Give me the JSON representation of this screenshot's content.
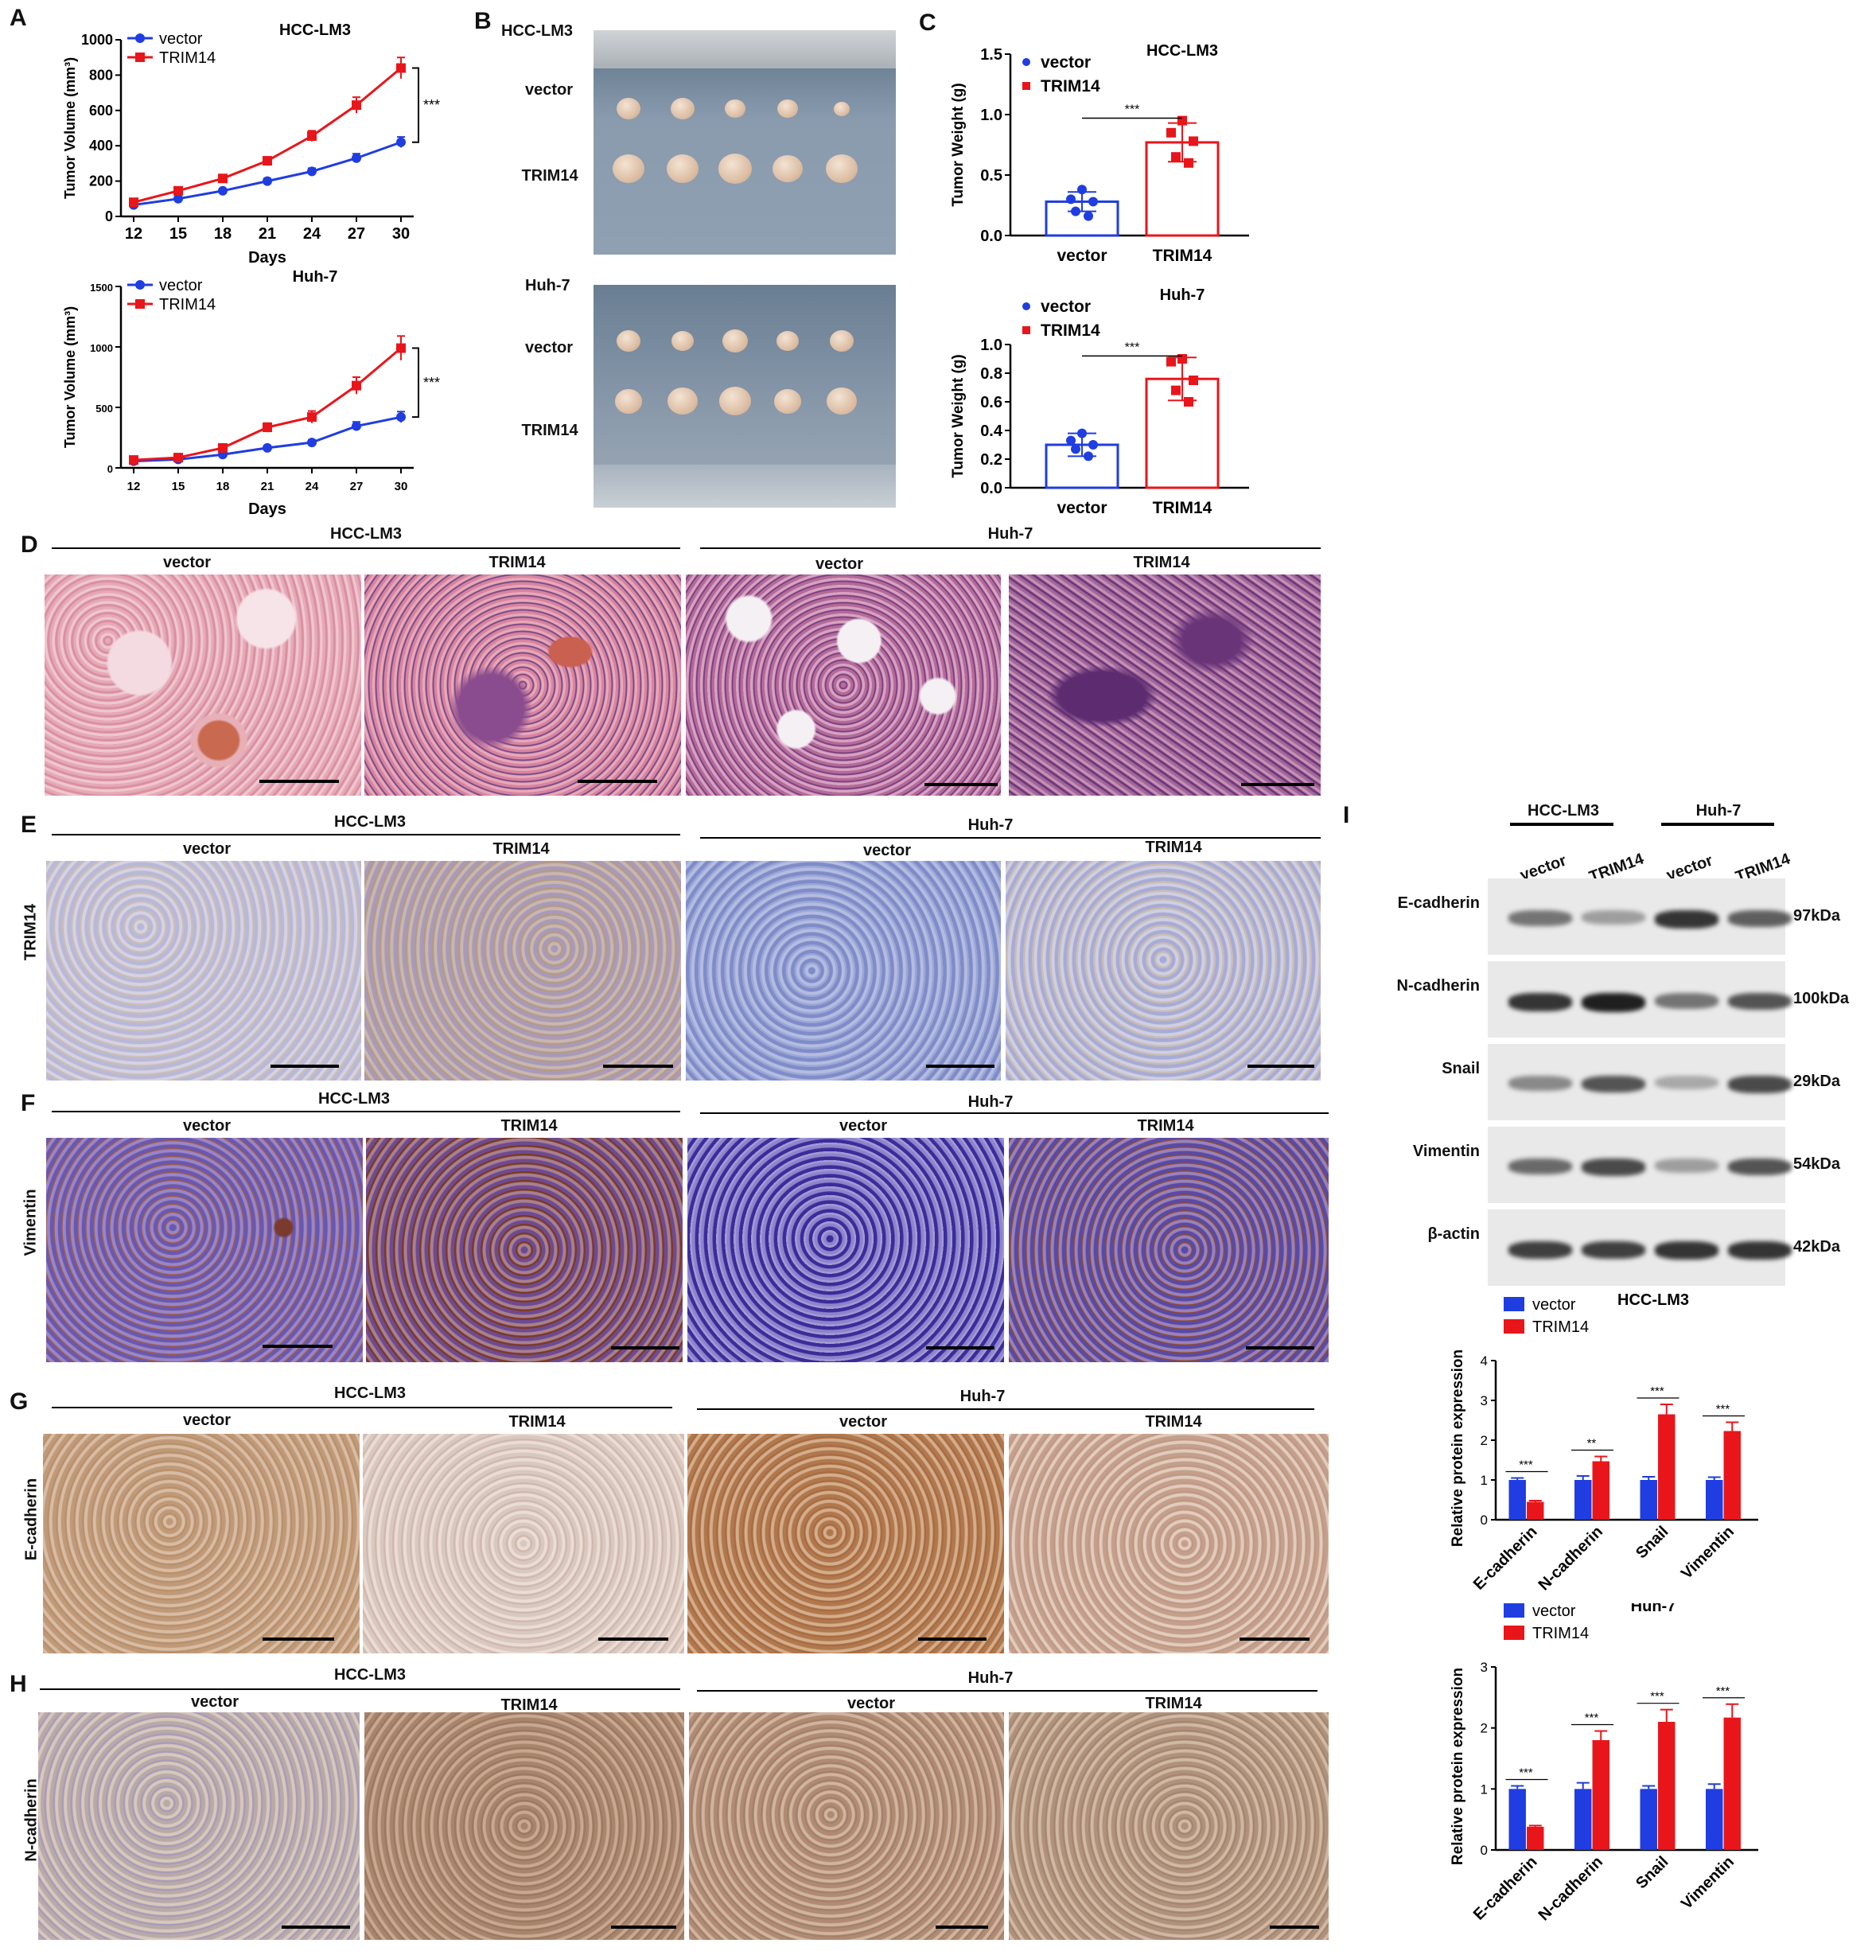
{
  "panels": {
    "A": "A",
    "B": "B",
    "C": "C",
    "D": "D",
    "E": "E",
    "F": "F",
    "G": "G",
    "H": "H",
    "I": "I"
  },
  "colors": {
    "vector": "#1f3de0",
    "trim14": "#e8161b"
  },
  "labels": {
    "vector": "vector",
    "trim14": "TRIM14",
    "hcc": "HCC-LM3",
    "huh": "Huh-7",
    "days": "Days",
    "tumor_volume": "Tumor Volume (mm³)",
    "tumor_weight": "Tumor Weight (g)",
    "rel_expr": "Relative protein expression",
    "sig3": "***",
    "sig2": "**"
  },
  "stain_rows": {
    "E": "TRIM14",
    "F": "Vimentin",
    "G": "E-cadherin",
    "H": "N-cadherin"
  },
  "blot": {
    "lanes": [
      "vector",
      "TRIM14",
      "vector",
      "TRIM14"
    ],
    "groups": [
      "HCC-LM3",
      "Huh-7"
    ],
    "rows": [
      {
        "protein": "E-cadherin",
        "kda": "97kDa"
      },
      {
        "protein": "N-cadherin",
        "kda": "100kDa"
      },
      {
        "protein": "Snail",
        "kda": "29kDa"
      },
      {
        "protein": "Vimentin",
        "kda": "54kDa"
      },
      {
        "protein": "β-actin",
        "kda": "42kDa"
      }
    ]
  },
  "chart_data": [
    {
      "id": "A1",
      "type": "line",
      "title": "HCC-LM3",
      "xlabel": "Days",
      "ylabel": "Tumor Volume (mm³)",
      "x": [
        12,
        15,
        18,
        21,
        24,
        27,
        30
      ],
      "ylim": [
        0,
        1000
      ],
      "yticks": [
        0,
        200,
        400,
        600,
        800,
        1000
      ],
      "series": [
        {
          "name": "vector",
          "values": [
            65,
            100,
            145,
            200,
            255,
            330,
            420
          ],
          "err": [
            10,
            10,
            12,
            15,
            18,
            25,
            30
          ]
        },
        {
          "name": "TRIM14",
          "values": [
            80,
            145,
            215,
            315,
            455,
            630,
            840
          ],
          "err": [
            10,
            12,
            15,
            20,
            30,
            45,
            60
          ]
        }
      ],
      "annotation": "***",
      "legend": "top-left"
    },
    {
      "id": "A2",
      "type": "line",
      "title": "Huh-7",
      "xlabel": "Days",
      "ylabel": "Tumor Volume (mm³)",
      "x": [
        12,
        15,
        18,
        21,
        24,
        27,
        30
      ],
      "ylim": [
        0,
        1500
      ],
      "yticks": [
        0,
        500,
        1000,
        1500
      ],
      "series": [
        {
          "name": "vector",
          "values": [
            55,
            70,
            110,
            165,
            210,
            345,
            420
          ],
          "err": [
            10,
            10,
            12,
            15,
            20,
            35,
            45
          ]
        },
        {
          "name": "TRIM14",
          "values": [
            65,
            85,
            165,
            335,
            420,
            680,
            990
          ],
          "err": [
            10,
            12,
            20,
            35,
            50,
            70,
            100
          ]
        }
      ],
      "annotation": "***",
      "legend": "top-left"
    },
    {
      "id": "C1",
      "type": "bar",
      "title": "HCC-LM3",
      "categories": [
        "vector",
        "TRIM14"
      ],
      "ylabel": "Tumor Weight (g)",
      "ylim": [
        0,
        1.5
      ],
      "yticks": [
        0.0,
        0.5,
        1.0,
        1.5
      ],
      "values": [
        0.28,
        0.77
      ],
      "err": [
        0.08,
        0.16
      ],
      "points": [
        [
          0.38,
          0.3,
          0.28,
          0.2,
          0.16
        ],
        [
          0.95,
          0.85,
          0.78,
          0.65,
          0.6
        ]
      ],
      "annotation": "***"
    },
    {
      "id": "C2",
      "type": "bar",
      "title": "Huh-7",
      "categories": [
        "vector",
        "TRIM14"
      ],
      "ylabel": "Tumor Weight (g)",
      "ylim": [
        0,
        1.0
      ],
      "yticks": [
        0.0,
        0.2,
        0.4,
        0.6,
        0.8,
        1.0
      ],
      "values": [
        0.3,
        0.76
      ],
      "err": [
        0.08,
        0.15
      ],
      "points": [
        [
          0.38,
          0.33,
          0.3,
          0.27,
          0.22
        ],
        [
          0.9,
          0.88,
          0.75,
          0.68,
          0.6
        ]
      ],
      "annotation": "***"
    },
    {
      "id": "I1",
      "type": "bar",
      "title": "HCC-LM3",
      "categories": [
        "E-cadherin",
        "N-cadherin",
        "Snail",
        "Vimentin"
      ],
      "ylabel": "Relative protein expression",
      "ylim": [
        0,
        4
      ],
      "yticks": [
        0,
        1,
        2,
        3,
        4
      ],
      "series": [
        {
          "name": "vector",
          "values": [
            1.0,
            1.0,
            1.0,
            1.0
          ],
          "err": [
            0.05,
            0.1,
            0.08,
            0.07
          ]
        },
        {
          "name": "TRIM14",
          "values": [
            0.45,
            1.47,
            2.65,
            2.23
          ],
          "err": [
            0.03,
            0.12,
            0.25,
            0.22
          ]
        }
      ],
      "annotations": [
        "***",
        "**",
        "***",
        "***"
      ]
    },
    {
      "id": "I2",
      "type": "bar",
      "title": "Huh-7",
      "categories": [
        "E-cadherin",
        "N-cadherin",
        "Snail",
        "Vimentin"
      ],
      "ylabel": "Relative protein expression",
      "ylim": [
        0,
        3
      ],
      "yticks": [
        0,
        1,
        2,
        3
      ],
      "series": [
        {
          "name": "vector",
          "values": [
            1.0,
            1.0,
            1.0,
            1.0
          ],
          "err": [
            0.05,
            0.1,
            0.05,
            0.08
          ]
        },
        {
          "name": "TRIM14",
          "values": [
            0.38,
            1.8,
            2.1,
            2.17
          ],
          "err": [
            0.02,
            0.15,
            0.2,
            0.22
          ]
        }
      ],
      "annotations": [
        "***",
        "***",
        "***",
        "***"
      ]
    }
  ]
}
